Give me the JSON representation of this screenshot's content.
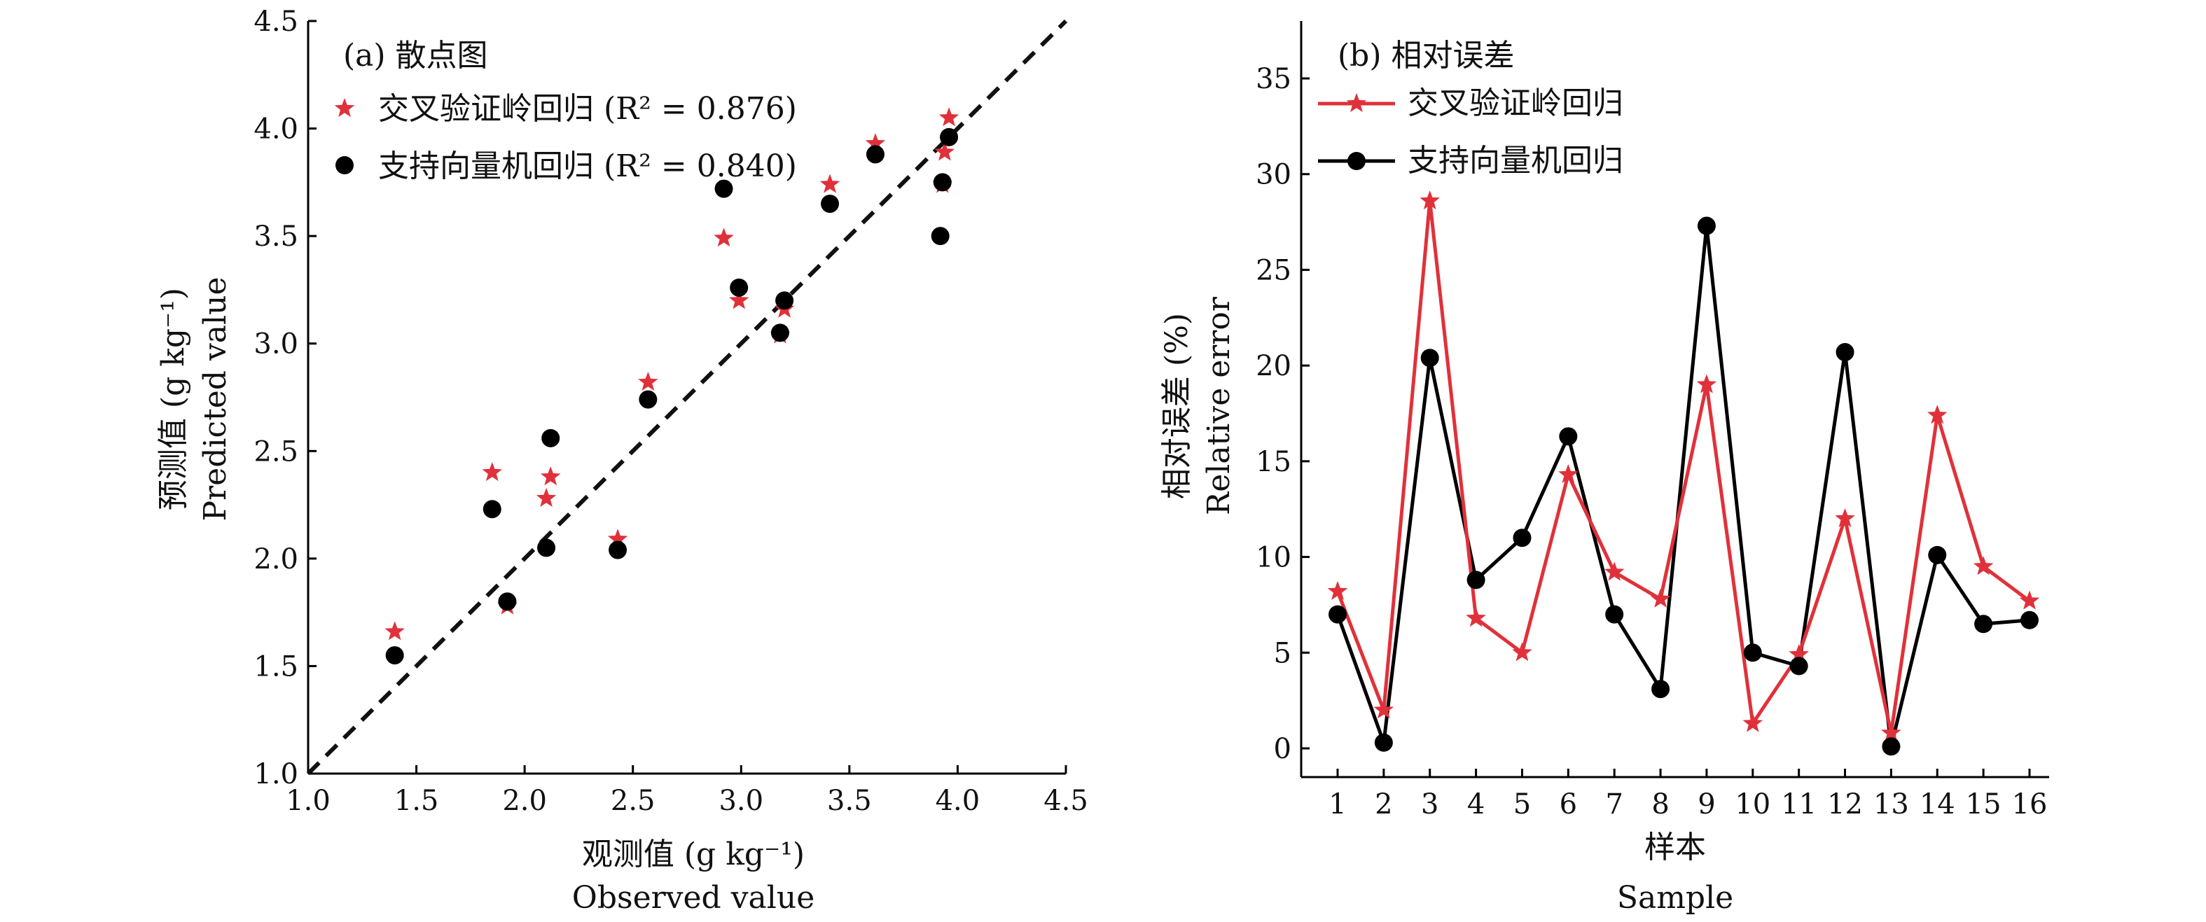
{
  "chart_data": [
    {
      "type": "scatter",
      "title": "(a) 散点图",
      "xlabel": [
        "观测值 (g kg⁻¹)",
        "Observed value"
      ],
      "ylabel": [
        "预测值 (g kg⁻¹)",
        "Predicted value"
      ],
      "xlim": [
        1.0,
        4.5
      ],
      "ylim": [
        1.0,
        4.5
      ],
      "xticks": [
        "1.0",
        "1.5",
        "2.0",
        "2.5",
        "3.0",
        "3.5",
        "4.0",
        "4.5"
      ],
      "yticks": [
        "1.0",
        "1.5",
        "2.0",
        "2.5",
        "3.0",
        "3.5",
        "4.0",
        "4.5"
      ],
      "reference_line": {
        "type": "1:1",
        "style": "dashed",
        "color": "#111111"
      },
      "legend_position": "top-left",
      "series": [
        {
          "name": "交叉验证岭回归 (R² = 0.876)",
          "marker": "star",
          "color": "#e0313a",
          "points": [
            [
              1.4,
              1.66
            ],
            [
              1.85,
              2.4
            ],
            [
              1.92,
              1.78
            ],
            [
              2.1,
              2.28
            ],
            [
              2.12,
              2.38
            ],
            [
              2.43,
              2.09
            ],
            [
              2.57,
              2.82
            ],
            [
              2.92,
              3.49
            ],
            [
              2.99,
              3.2
            ],
            [
              3.18,
              3.04
            ],
            [
              3.2,
              3.16
            ],
            [
              3.41,
              3.74
            ],
            [
              3.62,
              3.93
            ],
            [
              3.93,
              3.74
            ],
            [
              3.94,
              3.89
            ],
            [
              3.96,
              4.05
            ]
          ]
        },
        {
          "name": "支持向量机回归 (R² = 0.840)",
          "marker": "circle",
          "color": "#000000",
          "points": [
            [
              1.4,
              1.55
            ],
            [
              1.85,
              2.23
            ],
            [
              1.92,
              1.8
            ],
            [
              2.1,
              2.05
            ],
            [
              2.12,
              2.56
            ],
            [
              2.43,
              2.04
            ],
            [
              2.57,
              2.74
            ],
            [
              2.92,
              3.72
            ],
            [
              2.99,
              3.26
            ],
            [
              3.18,
              3.05
            ],
            [
              3.2,
              3.2
            ],
            [
              3.41,
              3.65
            ],
            [
              3.62,
              3.88
            ],
            [
              3.92,
              3.5
            ],
            [
              3.93,
              3.75
            ],
            [
              3.96,
              3.96
            ]
          ]
        }
      ]
    },
    {
      "type": "line",
      "title": "(b) 相对误差",
      "xlabel": [
        "样本",
        "Sample"
      ],
      "ylabel": [
        "相对误差 (%)",
        "Relative error"
      ],
      "x": [
        1,
        2,
        3,
        4,
        5,
        6,
        7,
        8,
        9,
        10,
        11,
        12,
        13,
        14,
        15,
        16
      ],
      "xticks": [
        "1",
        "2",
        "3",
        "4",
        "5",
        "6",
        "7",
        "8",
        "9",
        "10",
        "11",
        "12",
        "13",
        "14",
        "15",
        "16"
      ],
      "ylim": [
        -1.5,
        38
      ],
      "yticks": [
        "0",
        "5",
        "10",
        "15",
        "20",
        "25",
        "30",
        "35"
      ],
      "legend_position": "top-left",
      "series": [
        {
          "name": "交叉验证岭回归",
          "marker": "star",
          "color": "#e0313a",
          "values": [
            8.2,
            2.0,
            28.6,
            6.8,
            5.0,
            14.3,
            9.2,
            7.8,
            19.0,
            1.3,
            4.9,
            12.0,
            0.8,
            17.4,
            9.5,
            7.7
          ]
        },
        {
          "name": "支持向量机回归",
          "marker": "circle",
          "color": "#000000",
          "values": [
            7.0,
            0.3,
            20.4,
            8.8,
            11.0,
            16.3,
            7.0,
            3.1,
            27.3,
            5.0,
            4.3,
            20.7,
            0.1,
            10.1,
            6.5,
            6.7
          ]
        }
      ]
    }
  ]
}
